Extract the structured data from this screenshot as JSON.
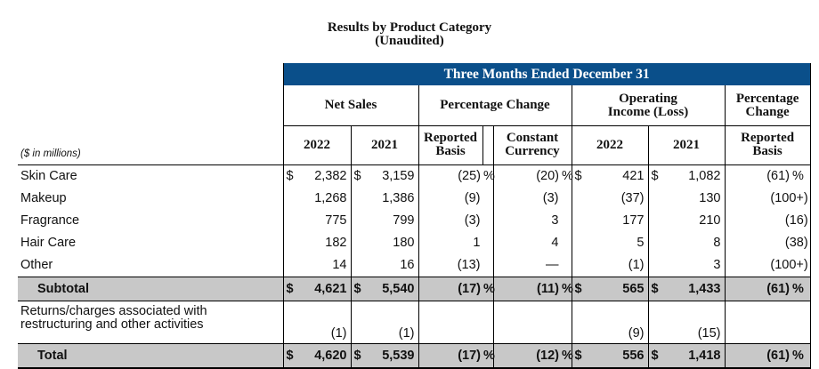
{
  "title": {
    "line1": "Results by Product Category",
    "line2": "(Unaudited)"
  },
  "banner": "Three Months Ended December 31",
  "headers": {
    "net_sales": "Net Sales",
    "pct_change": "Percentage Change",
    "op_income_line1": "Operating",
    "op_income_line2": "Income (Loss)",
    "pct_change2_line1": "Percentage",
    "pct_change2_line2": "Change",
    "units": "($ in millions)",
    "y2022": "2022",
    "y2021": "2021",
    "reported_line1": "Reported",
    "reported_line2": "Basis",
    "constant_line1": "Constant",
    "constant_line2": "Currency"
  },
  "rows": [
    {
      "label": "Skin Care",
      "ns2022": "2,382",
      "ns2021": "3,159",
      "rep": "(25)",
      "cc": "(20)",
      "oi2022": "421",
      "oi2021": "1,082",
      "oirep": "(61)"
    },
    {
      "label": "Makeup",
      "ns2022": "1,268",
      "ns2021": "1,386",
      "rep": "(9)",
      "cc": "(3)",
      "oi2022": "(37)",
      "oi2021": "130",
      "oirep": "(100+)"
    },
    {
      "label": "Fragrance",
      "ns2022": "775",
      "ns2021": "799",
      "rep": "(3)",
      "cc": "3",
      "oi2022": "177",
      "oi2021": "210",
      "oirep": "(16)"
    },
    {
      "label": "Hair Care",
      "ns2022": "182",
      "ns2021": "180",
      "rep": "1",
      "cc": "4",
      "oi2022": "5",
      "oi2021": "8",
      "oirep": "(38)"
    },
    {
      "label": "Other",
      "ns2022": "14",
      "ns2021": "16",
      "rep": "(13)",
      "cc": "—",
      "oi2022": "(1)",
      "oi2021": "3",
      "oirep": "(100+)"
    }
  ],
  "subtotal": {
    "label": "Subtotal",
    "ns2022": "4,621",
    "ns2021": "5,540",
    "rep": "(17)",
    "cc": "(11)",
    "oi2022": "565",
    "oi2021": "1,433",
    "oirep": "(61)"
  },
  "restructuring": {
    "label_line1": "Returns/charges associated with",
    "label_line2": "restructuring and other activities",
    "ns2022": "(1)",
    "ns2021": "(1)",
    "oi2022": "(9)",
    "oi2021": "(15)"
  },
  "total": {
    "label": "Total",
    "ns2022": "4,620",
    "ns2021": "5,539",
    "rep": "(17)",
    "cc": "(12)",
    "oi2022": "556",
    "oi2021": "1,418",
    "oirep": "(61)"
  },
  "symbols": {
    "dollar": "$",
    "percent": "%"
  },
  "colors": {
    "banner": "#0a4f8a",
    "shade": "#c8c8c8"
  }
}
